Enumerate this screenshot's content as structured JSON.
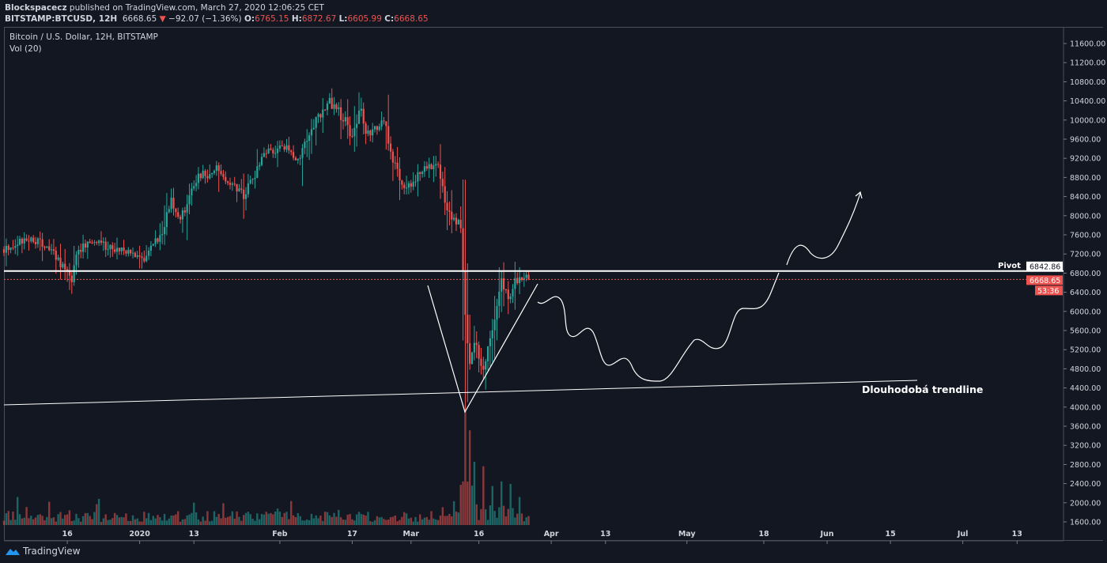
{
  "header": {
    "author": "Blockspacecz",
    "published": "published on TradingView.com, March 27, 2020 12:06:25 CET",
    "symbol": "BITSTAMP:BTCUSD, 12H",
    "last": "6668.65",
    "change": "−92.07 (−1.36%)",
    "o_label": "O:",
    "o": "6765.15",
    "h_label": "H:",
    "h": "6872.67",
    "l_label": "L:",
    "l": "6605.99",
    "c_label": "C:",
    "c": "6668.65"
  },
  "legend": {
    "title": "Bitcoin / U.S. Dollar, 12H, BITSTAMP",
    "indicator": "Vol (20)"
  },
  "colors": {
    "up": "#26a69a",
    "down": "#ef5350",
    "bg": "#131722",
    "drawing": "#ffffff"
  },
  "chart_data": {
    "type": "candlestick",
    "interval": "12H",
    "ylim": [
      1600,
      11800
    ],
    "price_ticks": [
      1600,
      2000,
      2400,
      2800,
      3200,
      3600,
      4000,
      4400,
      4800,
      5200,
      5600,
      6000,
      6400,
      6800,
      7200,
      7600,
      8000,
      8400,
      8800,
      9200,
      9600,
      10000,
      10400,
      10800,
      11200,
      11600
    ],
    "time_ticks": [
      {
        "label": "16",
        "day": 14
      },
      {
        "label": "2020",
        "day": 30
      },
      {
        "label": "13",
        "day": 42
      },
      {
        "label": "Feb",
        "day": 61
      },
      {
        "label": "17",
        "day": 77
      },
      {
        "label": "Mar",
        "day": 90
      },
      {
        "label": "16",
        "day": 105
      },
      {
        "label": "Apr",
        "day": 121
      },
      {
        "label": "13",
        "day": 133
      },
      {
        "label": "May",
        "day": 151
      },
      {
        "label": "18",
        "day": 168
      },
      {
        "label": "Jun",
        "day": 182
      },
      {
        "label": "15",
        "day": 196
      },
      {
        "label": "Jul",
        "day": 212
      },
      {
        "label": "13",
        "day": 224
      }
    ],
    "close_path_day_price": [
      [
        0,
        7300
      ],
      [
        6,
        7550
      ],
      [
        11,
        7220
      ],
      [
        15,
        6640
      ],
      [
        16,
        7250
      ],
      [
        19,
        7450
      ],
      [
        26,
        7300
      ],
      [
        31,
        7050
      ],
      [
        35,
        7700
      ],
      [
        37,
        8300
      ],
      [
        39,
        7950
      ],
      [
        43,
        8800
      ],
      [
        47,
        8950
      ],
      [
        51,
        8630
      ],
      [
        53,
        8400
      ],
      [
        58,
        9300
      ],
      [
        62,
        9450
      ],
      [
        65,
        9200
      ],
      [
        68,
        9860
      ],
      [
        72,
        10360
      ],
      [
        74,
        10200
      ],
      [
        77,
        9700
      ],
      [
        79,
        10280
      ],
      [
        80,
        9620
      ],
      [
        84,
        9950
      ],
      [
        86,
        9200
      ],
      [
        88,
        8700
      ],
      [
        90,
        8630
      ],
      [
        92,
        8870
      ],
      [
        95,
        9120
      ],
      [
        96,
        9120
      ],
      [
        98,
        8130
      ],
      [
        99,
        7880
      ],
      [
        101,
        7800
      ],
      [
        102,
        5900
      ],
      [
        103,
        4900
      ],
      [
        104,
        5400
      ],
      [
        106,
        4740
      ],
      [
        107,
        5240
      ],
      [
        109,
        6060
      ],
      [
        110,
        6640
      ],
      [
        112,
        6230
      ],
      [
        113,
        6640
      ],
      [
        115,
        6720
      ],
      [
        116,
        6668.65
      ]
    ],
    "last_day": 116,
    "pivot_price": 6842.86,
    "current_price": 6668.65,
    "countdown": "53:36",
    "volume_spike_days": [
      [
        101,
        0.35
      ],
      [
        102,
        1.0
      ],
      [
        103,
        0.9
      ],
      [
        104,
        0.55
      ],
      [
        106,
        0.5
      ],
      [
        108,
        0.45
      ],
      [
        110,
        0.45
      ],
      [
        112,
        0.4
      ],
      [
        114,
        0.3
      ]
    ]
  },
  "annotations": {
    "pivot_label": "Pivot",
    "trendline_label": "Dlouhodobá trendline"
  },
  "price_axis": {
    "pivot_value": "6842.86",
    "current_value": "6668.65",
    "countdown": "53:36"
  },
  "footer": {
    "brand": "TradingView"
  }
}
